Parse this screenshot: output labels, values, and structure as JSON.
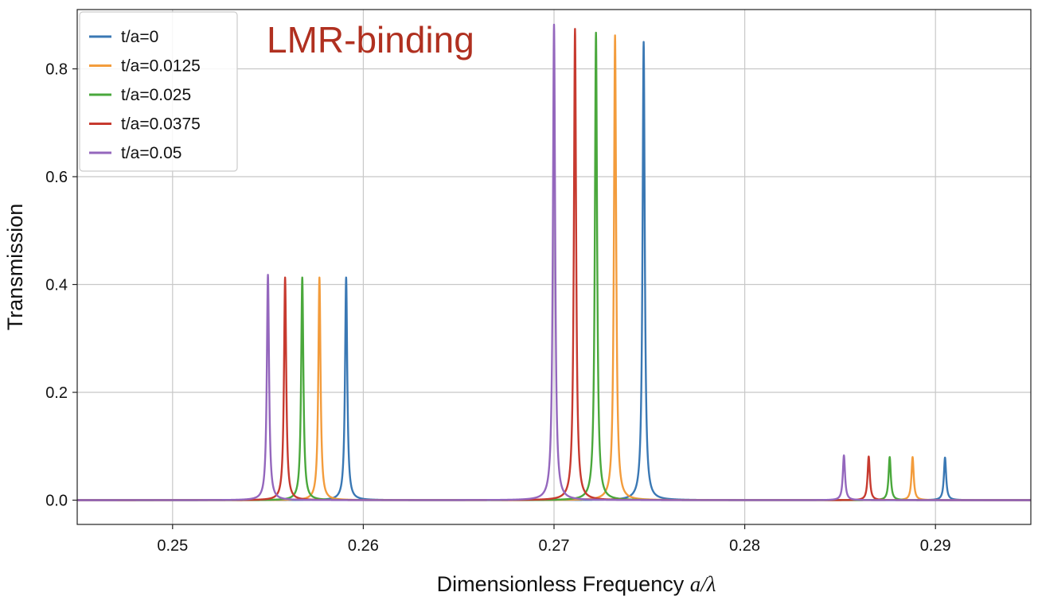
{
  "chart_data": {
    "type": "line",
    "annotation": "LMR-binding",
    "annotation_color": "#b03020",
    "xlabel": "Dimensionless Frequency ",
    "xlabel_math": "a/λ",
    "ylabel": "Transmission",
    "xlim": [
      0.245,
      0.295
    ],
    "ylim": [
      -0.045,
      0.91
    ],
    "xticks": [
      0.25,
      0.26,
      0.27,
      0.28,
      0.29
    ],
    "xtick_labels": [
      "0.25",
      "0.26",
      "0.27",
      "0.28",
      "0.29"
    ],
    "yticks": [
      0.0,
      0.2,
      0.4,
      0.6,
      0.8
    ],
    "ytick_labels": [
      "0.0",
      "0.2",
      "0.4",
      "0.6",
      "0.8"
    ],
    "grid": true,
    "legend_position": "top-left",
    "series": [
      {
        "name": "t/a=0",
        "color": "#3a78b4",
        "peaks": [
          {
            "x": 0.2591,
            "y": 0.413
          },
          {
            "x": 0.2747,
            "y": 0.85
          },
          {
            "x": 0.2905,
            "y": 0.079
          }
        ]
      },
      {
        "name": "t/a=0.0125",
        "color": "#f39c3c",
        "peaks": [
          {
            "x": 0.2577,
            "y": 0.413
          },
          {
            "x": 0.2732,
            "y": 0.862
          },
          {
            "x": 0.2888,
            "y": 0.08
          }
        ]
      },
      {
        "name": "t/a=0.025",
        "color": "#4aa83c",
        "peaks": [
          {
            "x": 0.2568,
            "y": 0.413
          },
          {
            "x": 0.2722,
            "y": 0.867
          },
          {
            "x": 0.2876,
            "y": 0.08
          }
        ]
      },
      {
        "name": "t/a=0.0375",
        "color": "#c73a2f",
        "peaks": [
          {
            "x": 0.2559,
            "y": 0.413
          },
          {
            "x": 0.2711,
            "y": 0.874
          },
          {
            "x": 0.2865,
            "y": 0.081
          }
        ]
      },
      {
        "name": "t/a=0.05",
        "color": "#9467bd",
        "peaks": [
          {
            "x": 0.255,
            "y": 0.418
          },
          {
            "x": 0.27,
            "y": 0.882
          },
          {
            "x": 0.2852,
            "y": 0.083
          }
        ]
      }
    ]
  }
}
